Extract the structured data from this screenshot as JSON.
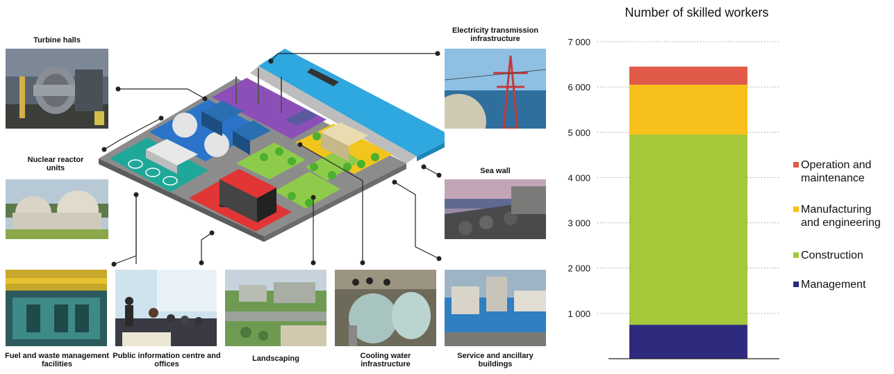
{
  "diagram": {
    "labels": {
      "turbine_halls": "Turbine halls",
      "nuclear_reactor_units": "Nuclear reactor units",
      "electricity_transmission": "Electricity transmission infrastructure",
      "sea_wall": "Sea wall",
      "fuel_waste": "Fuel and waste management facilities",
      "public_info": "Public information centre and offices",
      "landscaping": "Landscaping",
      "cooling_water": "Cooling water infrastructure",
      "service_ancillary": "Service and ancillary buildings"
    },
    "colors": {
      "base": "#8c8c8c",
      "teal": "#1fa89a",
      "blue": "#2b74c9",
      "purple": "#8c4fb8",
      "yellow": "#f2c51c",
      "green": "#8fcb4a",
      "red": "#e23535",
      "sea": "#2fa7df"
    }
  },
  "chart_data": {
    "type": "bar",
    "title": "Number of skilled workers",
    "categories": [
      ""
    ],
    "series": [
      {
        "name": "Management",
        "values": [
          750
        ],
        "color": "#2e2a7e"
      },
      {
        "name": "Construction",
        "values": [
          4200
        ],
        "color": "#a3c83a"
      },
      {
        "name": "Manufacturing and engineering",
        "values": [
          1100
        ],
        "color": "#f8c01a"
      },
      {
        "name": "Operation and maintenance",
        "values": [
          400
        ],
        "color": "#e05a47"
      }
    ],
    "yticks": [
      "1 000",
      "2 000",
      "3 000",
      "4 000",
      "5 000",
      "6 000",
      "7 000"
    ],
    "ylim": [
      0,
      7000
    ],
    "stacked": true,
    "grid": "dotted",
    "legend_position": "right",
    "legend": [
      {
        "line1": "Operation and",
        "line2": "maintenance",
        "color": "#e05a47"
      },
      {
        "line1": "Manufacturing",
        "line2": "and engineering",
        "color": "#f8c01a"
      },
      {
        "line1": "Construction",
        "line2": "",
        "color": "#a3c83a"
      },
      {
        "line1": "Management",
        "line2": "",
        "color": "#2e2a7e"
      }
    ]
  }
}
